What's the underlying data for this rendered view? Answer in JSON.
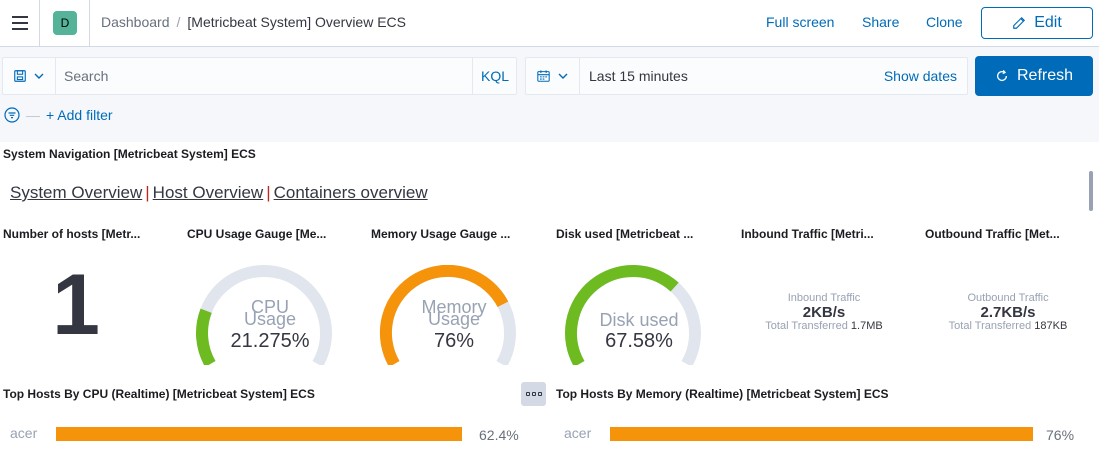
{
  "header": {
    "space_initial": "D",
    "breadcrumb_root": "Dashboard",
    "breadcrumb_separator": "/",
    "breadcrumb_current": "[Metricbeat System] Overview ECS",
    "full_screen": "Full screen",
    "share": "Share",
    "clone": "Clone",
    "edit": "Edit"
  },
  "query_bar": {
    "search_placeholder": "Search",
    "language": "KQL",
    "time_range": "Last 15 minutes",
    "show_dates": "Show dates",
    "refresh": "Refresh",
    "add_filter": "+ Add filter",
    "accent_color": "#006bb8"
  },
  "navigation_panel": {
    "title": "System Navigation [Metricbeat System] ECS",
    "links": [
      "System Overview",
      "Host Overview",
      "Containers overview"
    ],
    "separator": "|"
  },
  "metric_panels": {
    "hosts": {
      "title": "Number of hosts [Metr...",
      "value": "1"
    },
    "cpu": {
      "title": "CPU Usage Gauge [Me...",
      "label_line1": "CPU",
      "label_line2": "Usage",
      "value": "21.275%",
      "fraction": 0.21275,
      "color": "#6dbb21"
    },
    "memory": {
      "title": "Memory Usage Gauge ...",
      "label_line1": "Memory",
      "label_line2": "Usage",
      "value": "76%",
      "fraction": 0.76,
      "color": "#f5930b"
    },
    "disk": {
      "title": "Disk used [Metricbeat ...",
      "label_line1": "Disk used",
      "value": "67.58%",
      "fraction": 0.6758,
      "color": "#6dbb21"
    },
    "inbound": {
      "title": "Inbound Traffic [Metri...",
      "label": "Inbound Traffic",
      "value": "2KB/s",
      "total_label": "Total Transferred",
      "total_value": "1.7MB"
    },
    "outbound": {
      "title": "Outbound Traffic [Met...",
      "label": "Outbound Traffic",
      "value": "2.7KB/s",
      "total_label": "Total Transferred",
      "total_value": "187KB"
    }
  },
  "top_hosts": {
    "cpu": {
      "title": "Top Hosts By CPU (Realtime) [Metricbeat System] ECS",
      "rows": [
        {
          "host": "acer",
          "value": "62.4%",
          "fraction": 0.624
        }
      ]
    },
    "memory": {
      "title": "Top Hosts By Memory (Realtime) [Metricbeat System] ECS",
      "rows": [
        {
          "host": "acer",
          "value": "76%",
          "fraction": 0.76
        }
      ]
    },
    "bar_color": "#f5930b"
  },
  "icons": {
    "menu": "hamburger-icon",
    "saved_query": "save-icon",
    "calendar": "calendar-icon",
    "refresh": "refresh-icon",
    "edit": "pencil-icon",
    "filter": "filter-icon",
    "more": "boxes-horizontal-icon"
  }
}
